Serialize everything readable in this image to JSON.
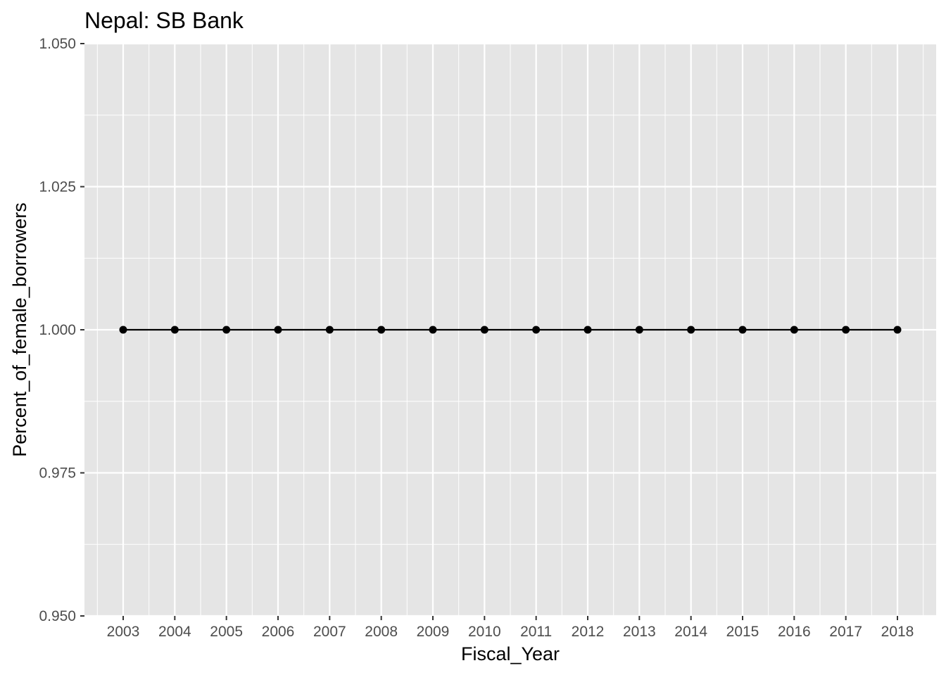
{
  "chart_data": {
    "type": "line",
    "title": "Nepal:  SB Bank",
    "xlabel": "Fiscal_Year",
    "ylabel": "Percent_of_female_borrowers",
    "categories": [
      "2003",
      "2004",
      "2005",
      "2006",
      "2007",
      "2008",
      "2009",
      "2010",
      "2011",
      "2012",
      "2013",
      "2014",
      "2015",
      "2016",
      "2017",
      "2018"
    ],
    "series": [
      {
        "values": [
          1,
          1,
          1,
          1,
          1,
          1,
          1,
          1,
          1,
          1,
          1,
          1,
          1,
          1,
          1,
          1
        ]
      }
    ],
    "ylim": [
      0.95,
      1.05
    ],
    "yticks": [
      "0.950",
      "0.975",
      "1.000",
      "1.025",
      "1.050"
    ],
    "grid": true,
    "legend": "none",
    "colors": {
      "panel": "#e5e5e5",
      "grid": "#ffffff",
      "line": "#000000",
      "tick_text": "#4d4d4d"
    }
  }
}
